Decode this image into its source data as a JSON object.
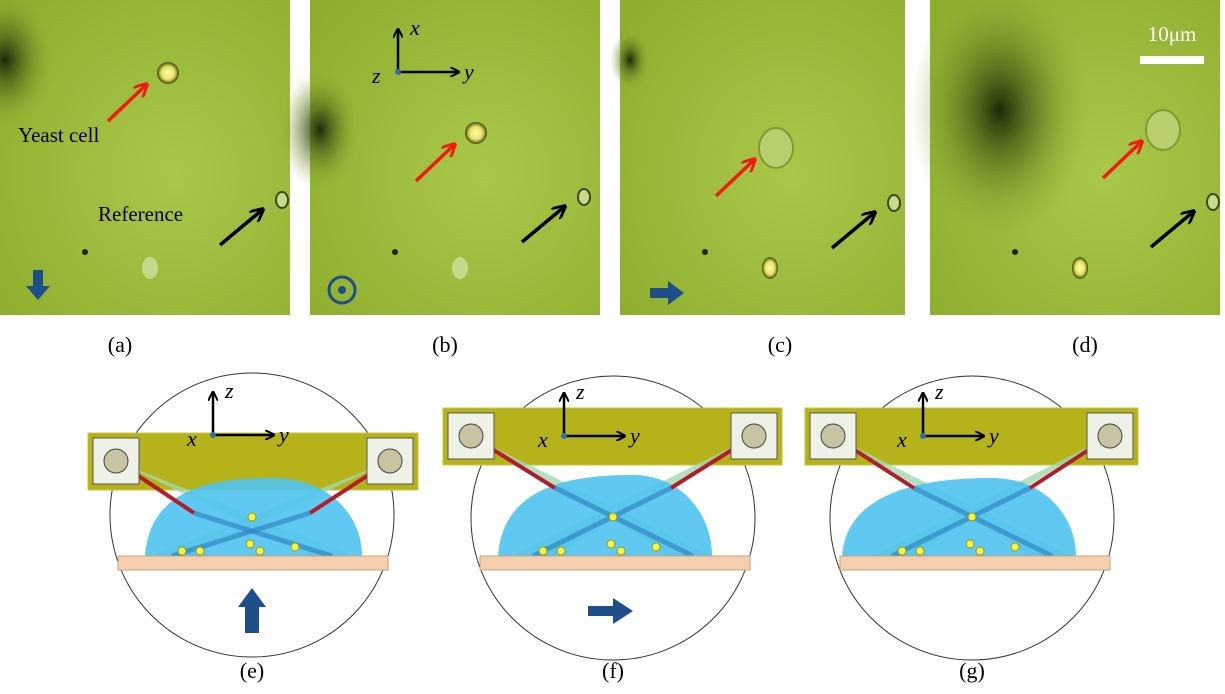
{
  "micrographs": [
    {
      "label": "(a)",
      "cell_label": "Yeast cell",
      "reference_label": "Reference"
    },
    {
      "label": "(b)",
      "axes": {
        "x": "x",
        "y": "y",
        "z": "z"
      }
    },
    {
      "label": "(c)"
    },
    {
      "label": "(d)",
      "scale_bar": "10μm"
    }
  ],
  "schematics": [
    {
      "label": "(e)",
      "axes": {
        "x": "x",
        "y": "y",
        "z": "z"
      }
    },
    {
      "label": "(f)",
      "axes": {
        "x": "x",
        "y": "y",
        "z": "z"
      }
    },
    {
      "label": "(g)",
      "axes": {
        "x": "x",
        "y": "y",
        "z": "z"
      }
    }
  ]
}
